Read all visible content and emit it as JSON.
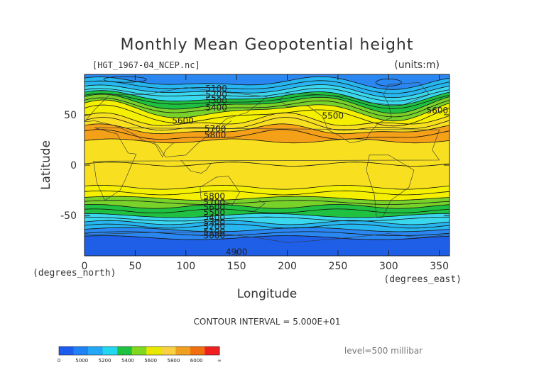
{
  "chart_data": {
    "type": "contour-map",
    "title": "Monthly Mean Geopotential height",
    "file_label": "[HGT_1967-04_NCEP.nc]",
    "units_label": "(units:m)",
    "xlabel": "Longitude",
    "ylabel": "Latitude",
    "x_unit_label": "(degrees_east)",
    "y_unit_label": "(degrees_north)",
    "xlim": [
      0,
      360
    ],
    "ylim": [
      -90,
      90
    ],
    "x_ticks": [
      0,
      50,
      100,
      150,
      200,
      250,
      300,
      350
    ],
    "y_ticks": [
      -50,
      0,
      50
    ],
    "contour_interval_label": "CONTOUR INTERVAL = 5.000E+01",
    "level_label": "level=500 millibar",
    "contour_labels": [
      {
        "text": "5100",
        "lon": 130,
        "lat": 76
      },
      {
        "text": "5200",
        "lon": 130,
        "lat": 70
      },
      {
        "text": "5300",
        "lon": 130,
        "lat": 64
      },
      {
        "text": "5400",
        "lon": 130,
        "lat": 57
      },
      {
        "text": "5600",
        "lon": 97,
        "lat": 44
      },
      {
        "text": "5700",
        "lon": 129,
        "lat": 36
      },
      {
        "text": "5800",
        "lon": 129,
        "lat": 30
      },
      {
        "text": "5500",
        "lon": 245,
        "lat": 49
      },
      {
        "text": "5600",
        "lon": 348,
        "lat": 54
      },
      {
        "text": "5800",
        "lon": 128,
        "lat": -31
      },
      {
        "text": "5700",
        "lon": 128,
        "lat": -37
      },
      {
        "text": "5600",
        "lon": 128,
        "lat": -42
      },
      {
        "text": "5500",
        "lon": 128,
        "lat": -47
      },
      {
        "text": "5400",
        "lon": 128,
        "lat": -52
      },
      {
        "text": "5300",
        "lon": 128,
        "lat": -57
      },
      {
        "text": "5200",
        "lon": 128,
        "lat": -61
      },
      {
        "text": "5100",
        "lon": 128,
        "lat": -66
      },
      {
        "text": "5000",
        "lon": 128,
        "lat": -70
      },
      {
        "text": "4900",
        "lon": 150,
        "lat": -86
      }
    ],
    "colorbar": {
      "tick_labels": [
        "0",
        "5000",
        "5200",
        "5400",
        "5600",
        "5800",
        "6000",
        "∞"
      ],
      "colors": [
        "#1e5cf0",
        "#1f82f5",
        "#22a8f6",
        "#22d8f0",
        "#20c040",
        "#80d820",
        "#e8e800",
        "#f8d040",
        "#f0a020",
        "#f07010",
        "#f02020"
      ]
    },
    "band_colors": {
      "deep_blue": "#1f5fe8",
      "blue": "#2a86f0",
      "light_blue": "#27b6f0",
      "cyan": "#3ad8ee",
      "green": "#20c040",
      "light_green": "#78d22a",
      "yellow": "#f4f000",
      "pale_yellow": "#f8e020",
      "orange": "#f4a018"
    }
  }
}
